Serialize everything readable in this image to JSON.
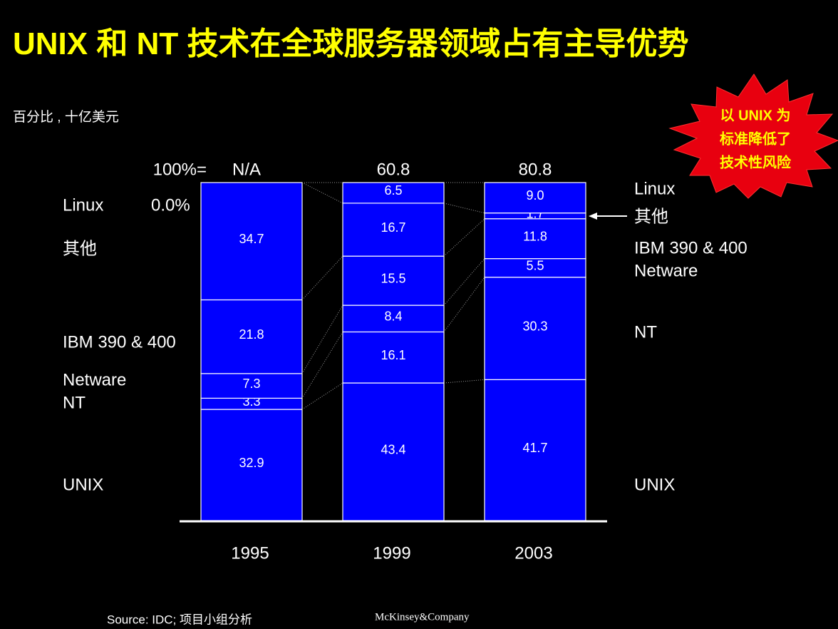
{
  "chart_data": {
    "type": "bar",
    "stacked": "percent",
    "title": "UNIX 和 NT 技术在全球服务器领域占有主导优势",
    "subtitle": "百分比 , 十亿美元",
    "totals_label": "100%=",
    "totals": [
      "N/A",
      "60.8",
      "80.8"
    ],
    "categories": [
      "1995",
      "1999",
      "2003"
    ],
    "series": [
      {
        "name": "UNIX",
        "color": "#0000ff",
        "values": [
          32.9,
          43.4,
          41.7
        ]
      },
      {
        "name": "NT",
        "color": "#0000ff",
        "values": [
          3.3,
          16.1,
          30.3
        ]
      },
      {
        "name": "Netware",
        "color": "#0000ff",
        "values": [
          7.3,
          8.4,
          5.5
        ]
      },
      {
        "name": "IBM 390 & 400",
        "color": "#0000ff",
        "values": [
          21.8,
          15.5,
          11.8
        ]
      },
      {
        "name": "其他",
        "color": "#0000ff",
        "values": [
          34.7,
          16.7,
          1.7
        ]
      },
      {
        "name": "Linux",
        "color": "#0000ff",
        "values": [
          0.0,
          6.5,
          9.0
        ],
        "value_labels": [
          "0.0%",
          "6.5",
          "9.0"
        ]
      }
    ],
    "callout": [
      "以 UNIX 为",
      "标准降低了",
      "技术性风险"
    ],
    "source": "Source: IDC;  项目小组分析",
    "footer": "McKinsey&Company"
  }
}
